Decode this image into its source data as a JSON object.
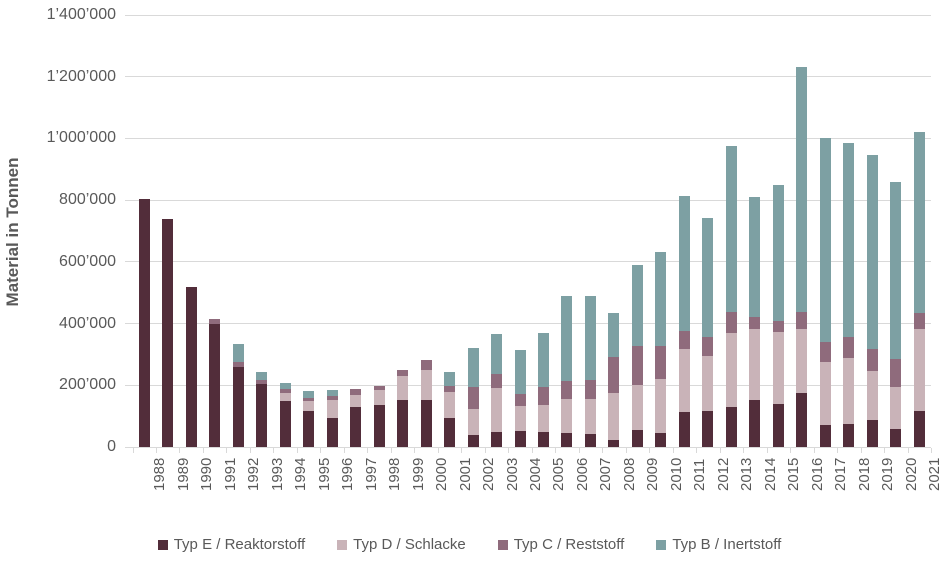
{
  "y_axis": {
    "title": "Material in Tonnen",
    "tick_labels": [
      "0",
      "200’000",
      "400’000",
      "600’000",
      "800’000",
      "1’000’000",
      "1’200’000",
      "1’400’000"
    ]
  },
  "colors": {
    "typ_e": "#522D3A",
    "typ_d": "#C9B3B8",
    "typ_c": "#8F6B7C",
    "typ_b": "#7DA0A3",
    "gridline": "#d9d9d9",
    "axis_text": "#595959"
  },
  "legend": {
    "entries": [
      "Typ E / Reaktorstoff",
      "Typ D / Schlacke",
      "Typ C / Reststoff",
      "Typ B / Inertstoff"
    ]
  },
  "chart_data": {
    "type": "bar",
    "stacked": true,
    "title": "",
    "xlabel": "",
    "ylabel": "Material in Tonnen",
    "ylim": [
      0,
      1400000
    ],
    "ytick_step": 200000,
    "grid": true,
    "legend_position": "bottom",
    "categories": [
      1988,
      1989,
      1990,
      1991,
      1992,
      1993,
      1994,
      1995,
      1996,
      1997,
      1998,
      1999,
      2000,
      2001,
      2002,
      2003,
      2004,
      2005,
      2006,
      2007,
      2008,
      2009,
      2010,
      2011,
      2012,
      2013,
      2014,
      2015,
      2016,
      2017,
      2018,
      2019,
      2020,
      2021
    ],
    "series": [
      {
        "name": "Typ E / Reaktorstoff",
        "color": "#522D3A",
        "values": [
          805000,
          740000,
          517000,
          400000,
          259000,
          204000,
          150000,
          116000,
          94000,
          130000,
          137000,
          151000,
          152000,
          95000,
          40000,
          48000,
          51000,
          48000,
          46000,
          43000,
          24000,
          54000,
          46000,
          114000,
          117000,
          130000,
          153000,
          140000,
          175000,
          70000,
          73000,
          86000,
          57000,
          118000
        ]
      },
      {
        "name": "Typ D / Schlacke",
        "color": "#C9B3B8",
        "values": [
          0,
          0,
          0,
          0,
          0,
          0,
          25000,
          33000,
          57000,
          40000,
          49000,
          78000,
          96000,
          82000,
          82000,
          142000,
          82000,
          87000,
          111000,
          113000,
          150000,
          148000,
          175000,
          205000,
          178000,
          240000,
          230000,
          234000,
          206000,
          204000,
          217000,
          161000,
          138000,
          264000
        ]
      },
      {
        "name": "Typ C / Reststoff",
        "color": "#8F6B7C",
        "values": [
          0,
          0,
          0,
          14000,
          15000,
          14000,
          13000,
          11000,
          13000,
          19000,
          13000,
          20000,
          35000,
          22000,
          71000,
          47000,
          38000,
          61000,
          58000,
          60000,
          118000,
          124000,
          106000,
          58000,
          62000,
          69000,
          37000,
          35000,
          57000,
          65000,
          65000,
          70000,
          90000,
          52000
        ]
      },
      {
        "name": "Typ B / Inertstoff",
        "color": "#7DA0A3",
        "values": [
          0,
          0,
          0,
          0,
          61000,
          24000,
          20000,
          21000,
          22000,
          0,
          0,
          0,
          0,
          45000,
          128000,
          128000,
          142000,
          172000,
          273000,
          274000,
          142000,
          264000,
          305000,
          437000,
          384000,
          536000,
          391000,
          439000,
          795000,
          661000,
          630000,
          629000,
          575000,
          587000
        ]
      }
    ]
  }
}
